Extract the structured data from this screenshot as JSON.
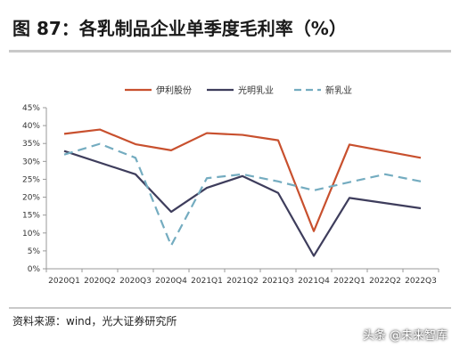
{
  "header": {
    "title": "图 87：各乳制品企业单季度毛利率（%）"
  },
  "footer": {
    "source": "资料来源：wind，光大证券研究所",
    "watermark": "头条 @未来智库"
  },
  "colors": {
    "yili": "#c8502e",
    "brightdairy": "#3e3d5c",
    "newhope": "#74acc0",
    "axis": "#999999"
  },
  "chart_data": {
    "type": "line",
    "categories": [
      "2020Q1",
      "2020Q2",
      "2020Q3",
      "2020Q4",
      "2021Q1",
      "2021Q2",
      "2021Q3",
      "2021Q4",
      "2022Q1",
      "2022Q2",
      "2022Q3"
    ],
    "ylim": [
      0,
      45
    ],
    "yticks": [
      "0%",
      "5%",
      "10%",
      "15%",
      "20%",
      "25%",
      "30%",
      "35%",
      "40%",
      "45%"
    ],
    "legend_position": "top-center",
    "grid": false,
    "series": [
      {
        "name": "伊利股份",
        "values": [
          37.7,
          38.9,
          34.8,
          33.1,
          37.9,
          37.4,
          35.9,
          10.5,
          34.7,
          null,
          31.0
        ]
      },
      {
        "name": "光明乳业",
        "values": [
          32.9,
          null,
          26.4,
          15.9,
          22.6,
          25.9,
          21.2,
          3.6,
          19.8,
          null,
          16.9
        ]
      },
      {
        "name": "新乳业",
        "values": [
          31.9,
          34.9,
          31.0,
          6.5,
          25.3,
          26.4,
          24.4,
          21.9,
          24.2,
          26.4,
          24.4
        ]
      }
    ]
  }
}
